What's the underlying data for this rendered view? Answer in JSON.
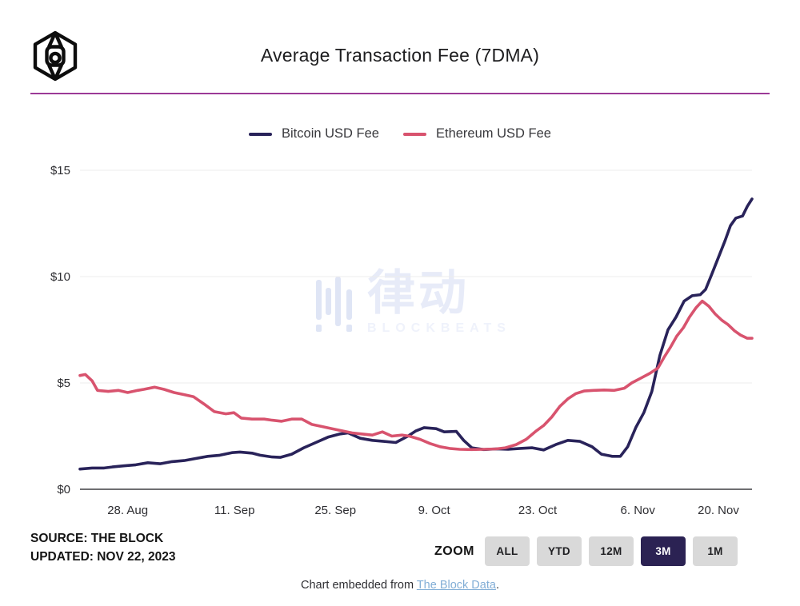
{
  "header": {
    "title": "Average Transaction Fee (7DMA)",
    "divider_color": "#9b3a97",
    "logo": "the-block-cube-logo"
  },
  "chart_data": {
    "type": "line",
    "title": "Average Transaction Fee (7DMA)",
    "unit": "USD",
    "grid": "horizontal",
    "legend_position": "top-center",
    "ylim": [
      0,
      15.6
    ],
    "y_ticks": [
      {
        "value": 0,
        "label": "$0"
      },
      {
        "value": 5,
        "label": "$5"
      },
      {
        "value": 10,
        "label": "$10"
      },
      {
        "value": 15,
        "label": "$15"
      }
    ],
    "x_ticks": [
      {
        "t": 0.071,
        "label": "28. Aug"
      },
      {
        "t": 0.23,
        "label": "11. Sep"
      },
      {
        "t": 0.38,
        "label": "25. Sep"
      },
      {
        "t": 0.527,
        "label": "9. Oct"
      },
      {
        "t": 0.681,
        "label": "23. Oct"
      },
      {
        "t": 0.83,
        "label": "6. Nov"
      },
      {
        "t": 0.95,
        "label": "20. Nov"
      }
    ],
    "x_range": "22 Aug 2023 - 22 Nov 2023 (3M)",
    "series": [
      {
        "name": "Bitcoin USD Fee",
        "color": "#29235a",
        "points": [
          [
            0.0,
            0.95
          ],
          [
            0.018,
            1.0
          ],
          [
            0.036,
            1.0
          ],
          [
            0.048,
            1.05
          ],
          [
            0.065,
            1.1
          ],
          [
            0.083,
            1.15
          ],
          [
            0.101,
            1.25
          ],
          [
            0.119,
            1.2
          ],
          [
            0.137,
            1.3
          ],
          [
            0.155,
            1.35
          ],
          [
            0.173,
            1.45
          ],
          [
            0.19,
            1.55
          ],
          [
            0.208,
            1.6
          ],
          [
            0.226,
            1.72
          ],
          [
            0.238,
            1.75
          ],
          [
            0.256,
            1.7
          ],
          [
            0.268,
            1.6
          ],
          [
            0.286,
            1.52
          ],
          [
            0.298,
            1.5
          ],
          [
            0.315,
            1.65
          ],
          [
            0.333,
            1.95
          ],
          [
            0.351,
            2.2
          ],
          [
            0.369,
            2.45
          ],
          [
            0.387,
            2.6
          ],
          [
            0.399,
            2.65
          ],
          [
            0.417,
            2.4
          ],
          [
            0.435,
            2.3
          ],
          [
            0.452,
            2.25
          ],
          [
            0.47,
            2.2
          ],
          [
            0.488,
            2.5
          ],
          [
            0.5,
            2.75
          ],
          [
            0.512,
            2.9
          ],
          [
            0.53,
            2.85
          ],
          [
            0.542,
            2.7
          ],
          [
            0.56,
            2.72
          ],
          [
            0.571,
            2.3
          ],
          [
            0.583,
            1.95
          ],
          [
            0.601,
            1.87
          ],
          [
            0.619,
            1.9
          ],
          [
            0.637,
            1.88
          ],
          [
            0.655,
            1.92
          ],
          [
            0.673,
            1.95
          ],
          [
            0.69,
            1.85
          ],
          [
            0.708,
            2.1
          ],
          [
            0.726,
            2.3
          ],
          [
            0.744,
            2.25
          ],
          [
            0.762,
            2.0
          ],
          [
            0.776,
            1.65
          ],
          [
            0.792,
            1.55
          ],
          [
            0.804,
            1.55
          ],
          [
            0.815,
            2.0
          ],
          [
            0.827,
            2.9
          ],
          [
            0.839,
            3.6
          ],
          [
            0.851,
            4.6
          ],
          [
            0.863,
            6.3
          ],
          [
            0.875,
            7.5
          ],
          [
            0.887,
            8.1
          ],
          [
            0.899,
            8.85
          ],
          [
            0.911,
            9.1
          ],
          [
            0.923,
            9.15
          ],
          [
            0.931,
            9.4
          ],
          [
            0.94,
            10.1
          ],
          [
            0.95,
            10.9
          ],
          [
            0.96,
            11.7
          ],
          [
            0.968,
            12.4
          ],
          [
            0.976,
            12.75
          ],
          [
            0.986,
            12.85
          ],
          [
            0.993,
            13.3
          ],
          [
            1.0,
            13.65
          ]
        ]
      },
      {
        "name": "Ethereum USD Fee",
        "color": "#d8536e",
        "points": [
          [
            0.0,
            5.35
          ],
          [
            0.008,
            5.4
          ],
          [
            0.018,
            5.1
          ],
          [
            0.026,
            4.65
          ],
          [
            0.042,
            4.6
          ],
          [
            0.057,
            4.65
          ],
          [
            0.071,
            4.55
          ],
          [
            0.086,
            4.65
          ],
          [
            0.095,
            4.7
          ],
          [
            0.111,
            4.8
          ],
          [
            0.125,
            4.7
          ],
          [
            0.14,
            4.55
          ],
          [
            0.155,
            4.45
          ],
          [
            0.169,
            4.35
          ],
          [
            0.185,
            4.0
          ],
          [
            0.2,
            3.65
          ],
          [
            0.217,
            3.55
          ],
          [
            0.229,
            3.6
          ],
          [
            0.24,
            3.35
          ],
          [
            0.256,
            3.3
          ],
          [
            0.274,
            3.3
          ],
          [
            0.286,
            3.25
          ],
          [
            0.3,
            3.2
          ],
          [
            0.315,
            3.3
          ],
          [
            0.33,
            3.3
          ],
          [
            0.345,
            3.05
          ],
          [
            0.36,
            2.95
          ],
          [
            0.375,
            2.85
          ],
          [
            0.39,
            2.75
          ],
          [
            0.405,
            2.65
          ],
          [
            0.419,
            2.6
          ],
          [
            0.435,
            2.55
          ],
          [
            0.45,
            2.7
          ],
          [
            0.464,
            2.5
          ],
          [
            0.479,
            2.55
          ],
          [
            0.49,
            2.5
          ],
          [
            0.506,
            2.35
          ],
          [
            0.521,
            2.15
          ],
          [
            0.536,
            2.0
          ],
          [
            0.55,
            1.92
          ],
          [
            0.565,
            1.88
          ],
          [
            0.583,
            1.87
          ],
          [
            0.601,
            1.88
          ],
          [
            0.619,
            1.9
          ],
          [
            0.633,
            1.95
          ],
          [
            0.649,
            2.1
          ],
          [
            0.664,
            2.35
          ],
          [
            0.679,
            2.75
          ],
          [
            0.69,
            3.0
          ],
          [
            0.702,
            3.4
          ],
          [
            0.714,
            3.9
          ],
          [
            0.726,
            4.25
          ],
          [
            0.738,
            4.5
          ],
          [
            0.75,
            4.62
          ],
          [
            0.764,
            4.65
          ],
          [
            0.78,
            4.67
          ],
          [
            0.795,
            4.65
          ],
          [
            0.81,
            4.75
          ],
          [
            0.821,
            5.0
          ],
          [
            0.833,
            5.2
          ],
          [
            0.848,
            5.45
          ],
          [
            0.86,
            5.7
          ],
          [
            0.869,
            6.2
          ],
          [
            0.879,
            6.7
          ],
          [
            0.888,
            7.2
          ],
          [
            0.898,
            7.6
          ],
          [
            0.907,
            8.1
          ],
          [
            0.917,
            8.55
          ],
          [
            0.926,
            8.85
          ],
          [
            0.936,
            8.6
          ],
          [
            0.945,
            8.25
          ],
          [
            0.955,
            7.95
          ],
          [
            0.964,
            7.75
          ],
          [
            0.974,
            7.45
          ],
          [
            0.983,
            7.25
          ],
          [
            0.993,
            7.1
          ],
          [
            1.0,
            7.1
          ]
        ]
      }
    ]
  },
  "watermark": {
    "icon": "equalizer-bars-icon",
    "cjk_text": "律动",
    "latin_text": "BLOCKBEATS",
    "bar_color": "#dfe5f5",
    "cjk_color": "#e7ebf8",
    "latin_color": "#eff2fb"
  },
  "source": {
    "line1": "SOURCE: THE BLOCK",
    "line2": "UPDATED: NOV 22, 2023"
  },
  "zoom_controls": {
    "label": "ZOOM",
    "buttons": [
      {
        "label": "ALL",
        "active": false
      },
      {
        "label": "YTD",
        "active": false
      },
      {
        "label": "12M",
        "active": false
      },
      {
        "label": "3M",
        "active": true
      },
      {
        "label": "1M",
        "active": false
      }
    ],
    "active_color": "#2b2253"
  },
  "embed_footer": {
    "prefix": "Chart embedded from ",
    "link_text": "The Block Data",
    "suffix": ".",
    "link_color": "#82aed6"
  }
}
